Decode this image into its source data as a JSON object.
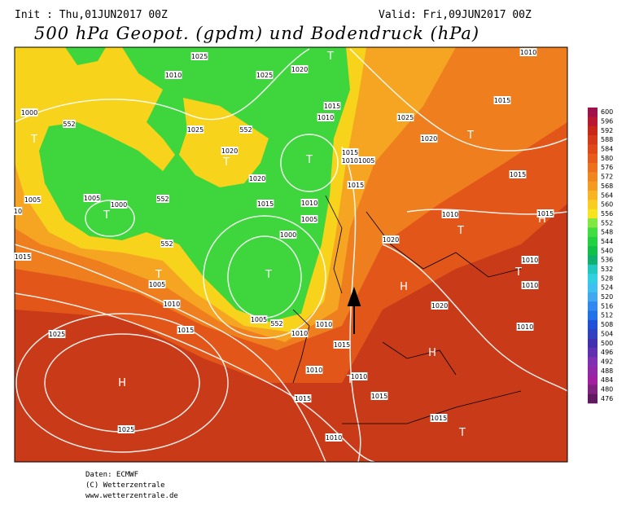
{
  "header": {
    "init": "Init : Thu,01JUN2017 00Z",
    "valid": "Valid: Fri,09JUN2017 00Z",
    "title": "500 hPa Geopot. (gpdm) und Bodendruck (hPa)"
  },
  "map": {
    "labels": [
      "1025",
      "1010",
      "1025",
      "1020",
      "T",
      "1000",
      "552",
      "T",
      "1025",
      "552",
      "1020",
      "T",
      "T",
      "1015",
      "1010",
      "1025",
      "1020",
      "T",
      "1015",
      "1010",
      "1015",
      "10101005",
      "1020",
      "1015",
      "552",
      "1005",
      "1005",
      "1000",
      "T",
      "1010",
      "1005",
      "1000",
      "1015",
      "T",
      "552",
      "1015",
      "T",
      "1005",
      "1010",
      "1015",
      "1005",
      "552",
      "1010",
      "1010",
      "1010",
      "T",
      "1020",
      "H",
      "1020",
      "1010",
      "1010",
      "T",
      "1010",
      "H",
      "1015",
      "1015",
      "H",
      "1025",
      "H",
      "1025",
      "1010",
      "1015",
      "T",
      "1010",
      "1015",
      "1015",
      "1015",
      "T",
      "1010",
      "10"
    ]
  },
  "colorbar": {
    "ticks": [
      600,
      596,
      592,
      588,
      584,
      580,
      576,
      572,
      568,
      564,
      560,
      556,
      552,
      548,
      544,
      540,
      536,
      532,
      528,
      524,
      520,
      516,
      512,
      508,
      504,
      500,
      496,
      492,
      488,
      484,
      480,
      476
    ],
    "colors": [
      "#a0104a",
      "#b81830",
      "#c82818",
      "#d43a18",
      "#e04a18",
      "#e85c1a",
      "#ee701c",
      "#f2861e",
      "#f59c20",
      "#f8b422",
      "#f9cc22",
      "#f8e41c",
      "#80e840",
      "#40dc40",
      "#20d040",
      "#10c048",
      "#10b070",
      "#20c8c0",
      "#30d0e0",
      "#40c0f0",
      "#40a8f0",
      "#3088f0",
      "#2070e8",
      "#2050d8",
      "#3040c0",
      "#4030b0",
      "#6030b0",
      "#8030b0",
      "#9028a8",
      "#a020a0",
      "#802080",
      "#601860"
    ]
  },
  "footer": {
    "line1": "Daten: ECMWF",
    "line2": "(C) Wetterzentrale",
    "line3": "www.wetterzentrale.de"
  }
}
